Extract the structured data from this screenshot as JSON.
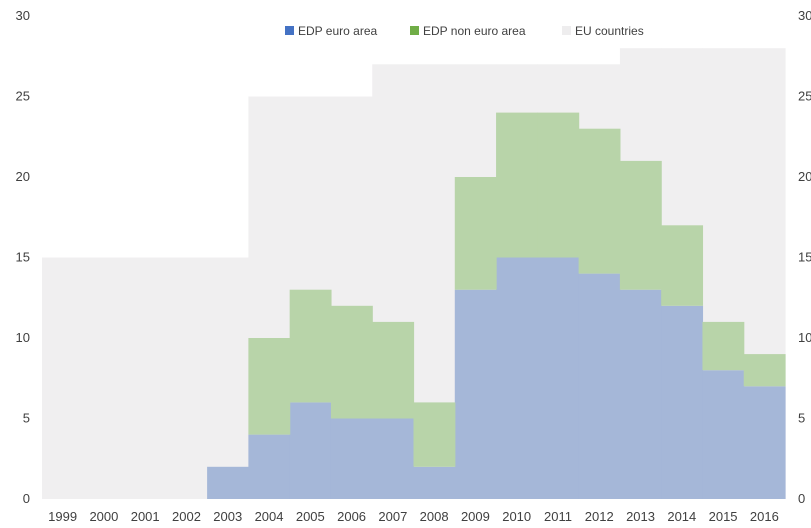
{
  "chart_data": {
    "type": "area",
    "stacked": true,
    "step": true,
    "title": "",
    "xlabel": "",
    "ylabel": "",
    "ylim": [
      0,
      30
    ],
    "yticks": [
      0,
      5,
      10,
      15,
      20,
      25,
      30
    ],
    "grid": false,
    "legend_position": "top",
    "categories": [
      "1999",
      "2000",
      "2001",
      "2002",
      "2003",
      "2004",
      "2005",
      "2006",
      "2007",
      "2008",
      "2009",
      "2010",
      "2011",
      "2012",
      "2013",
      "2014",
      "2015",
      "2016"
    ],
    "series": [
      {
        "name": "EDP euro area",
        "color": "#a5b7d8",
        "legend_color": "#4472c4",
        "values": [
          0,
          0,
          0,
          0,
          2,
          4,
          6,
          5,
          5,
          2,
          13,
          15,
          15,
          14,
          13,
          12,
          8,
          7
        ]
      },
      {
        "name": "EDP non euro area",
        "color": "#b8d4a9",
        "legend_color": "#70ad47",
        "values": [
          0,
          0,
          0,
          0,
          0,
          6,
          7,
          7,
          6,
          4,
          7,
          9,
          9,
          9,
          8,
          5,
          3,
          2
        ]
      }
    ],
    "background_series": {
      "name": "EU countries",
      "color": "#f0eff0",
      "legend_color": "#eeedee",
      "values": [
        15,
        15,
        15,
        15,
        15,
        25,
        25,
        25,
        27,
        27,
        27,
        27,
        27,
        27,
        28,
        28,
        28,
        28
      ]
    }
  }
}
